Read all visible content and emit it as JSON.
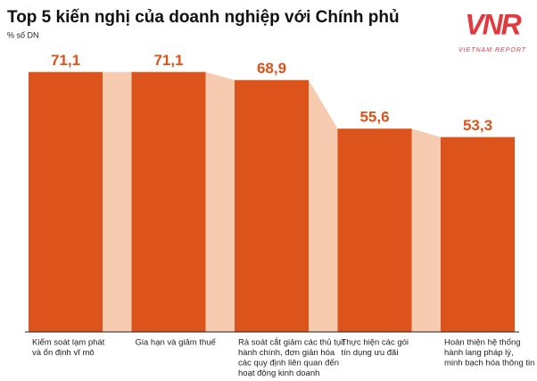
{
  "chart_data": {
    "type": "bar",
    "title": "Top 5 kiến nghị của doanh nghiệp với Chính phủ",
    "subtitle": "% số DN",
    "logo": {
      "mark": "VNR",
      "tagline": "VIETNAM REPORT"
    },
    "categories": [
      [
        "Kiểm soát lạm phát",
        "và ổn định vĩ mô"
      ],
      [
        "Gia hạn và giảm thuế"
      ],
      [
        "Rà soát cắt giảm các thủ tục",
        "hành chính, đơn giản hóa",
        "các quy định liên quan đến",
        "hoạt động kinh doanh"
      ],
      [
        "Thực hiện các gói",
        "tín dụng ưu đãi"
      ],
      [
        "Hoàn thiện hệ thống",
        "hành lang pháp lý,",
        "minh bạch hóa thông tin"
      ]
    ],
    "values": [
      71.1,
      71.1,
      68.9,
      55.6,
      53.3
    ],
    "value_labels": [
      "71,1",
      "71,1",
      "68,9",
      "55,6",
      "53,3"
    ],
    "color": "#dc541b",
    "connector_color": "#f6cbb0",
    "ylim": [
      0,
      72
    ]
  }
}
